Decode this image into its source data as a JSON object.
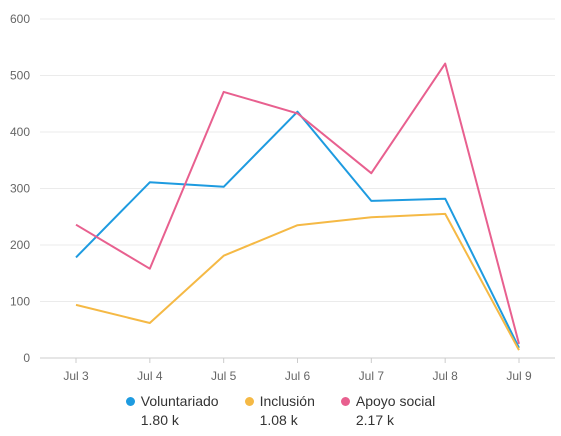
{
  "chart_data": {
    "type": "line",
    "categories": [
      "Jul 3",
      "Jul 4",
      "Jul 5",
      "Jul 6",
      "Jul 7",
      "Jul 8",
      "Jul 9"
    ],
    "ylim": [
      0,
      600
    ],
    "yticks": [
      "0",
      "100",
      "200",
      "300",
      "400",
      "500",
      "600"
    ],
    "grid": true,
    "legend_position": "bottom",
    "series": [
      {
        "name": "Voluntariado",
        "color": "#1e9be0",
        "total": "1.80 k",
        "values": [
          178,
          311,
          303,
          436,
          278,
          282,
          18
        ]
      },
      {
        "name": "Inclusión",
        "color": "#f5b945",
        "total": "1.08 k",
        "values": [
          94,
          62,
          181,
          235,
          249,
          255,
          14
        ]
      },
      {
        "name": "Apoyo social",
        "color": "#e8608f",
        "total": "2.17 k",
        "values": [
          236,
          158,
          471,
          433,
          327,
          521,
          25
        ]
      }
    ]
  }
}
